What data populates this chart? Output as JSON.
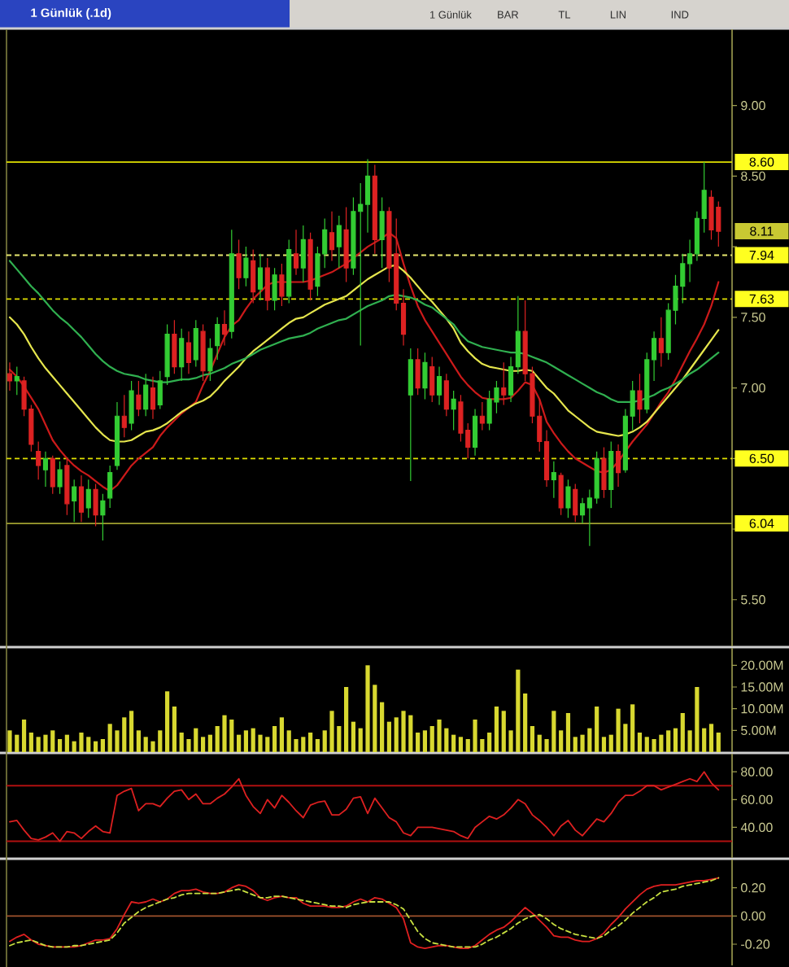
{
  "chart_data": [
    {
      "type": "candlestick",
      "title": "1 Günlük (.1d)",
      "categories": [
        null,
        null,
        null,
        null,
        null,
        null,
        null,
        null,
        null,
        null,
        null,
        null,
        null,
        null,
        null,
        null,
        null,
        null,
        null,
        null,
        null,
        null,
        null,
        null,
        null,
        null,
        null,
        null,
        null,
        null,
        null,
        null,
        null,
        null,
        null,
        null,
        null,
        null,
        null,
        null,
        null,
        null,
        null,
        null,
        null,
        null,
        null,
        null,
        null,
        null,
        null,
        null,
        null,
        null,
        null,
        null,
        null,
        null,
        null,
        null,
        null,
        null,
        null,
        null,
        null,
        null,
        null,
        null,
        null,
        null,
        null,
        null,
        null,
        null,
        null,
        null,
        null,
        null,
        null,
        null,
        null,
        null,
        null,
        null,
        null,
        null,
        null,
        null,
        null,
        null,
        null,
        null,
        null,
        null,
        null,
        null,
        null,
        null,
        null,
        null
      ],
      "ohlc": [
        [
          7.1,
          7.18,
          6.98,
          7.05
        ],
        [
          7.05,
          7.15,
          6.95,
          7.08
        ],
        [
          7.05,
          7.08,
          6.8,
          6.85
        ],
        [
          6.85,
          6.88,
          6.55,
          6.6
        ],
        [
          6.55,
          6.62,
          6.35,
          6.45
        ],
        [
          6.42,
          6.55,
          6.3,
          6.5
        ],
        [
          6.5,
          6.52,
          6.25,
          6.3
        ],
        [
          6.3,
          6.48,
          6.25,
          6.42
        ],
        [
          6.45,
          6.5,
          6.1,
          6.18
        ],
        [
          6.2,
          6.35,
          6.05,
          6.3
        ],
        [
          6.3,
          6.38,
          6.05,
          6.12
        ],
        [
          6.15,
          6.35,
          6.08,
          6.28
        ],
        [
          6.28,
          6.32,
          6.02,
          6.1
        ],
        [
          6.1,
          6.25,
          5.92,
          6.2
        ],
        [
          6.22,
          6.45,
          6.15,
          6.4
        ],
        [
          6.45,
          6.9,
          6.42,
          6.8
        ],
        [
          6.8,
          6.95,
          6.65,
          6.72
        ],
        [
          6.75,
          7.05,
          6.7,
          6.98
        ],
        [
          6.95,
          7.05,
          6.8,
          6.85
        ],
        [
          6.85,
          7.1,
          6.8,
          7.02
        ],
        [
          7.0,
          7.08,
          6.78,
          6.85
        ],
        [
          6.88,
          7.12,
          6.85,
          7.05
        ],
        [
          7.08,
          7.45,
          7.02,
          7.38
        ],
        [
          7.38,
          7.48,
          7.1,
          7.15
        ],
        [
          7.15,
          7.42,
          7.05,
          7.35
        ],
        [
          7.32,
          7.4,
          7.1,
          7.18
        ],
        [
          7.2,
          7.48,
          7.15,
          7.42
        ],
        [
          7.4,
          7.45,
          7.05,
          7.12
        ],
        [
          7.12,
          7.35,
          7.05,
          7.28
        ],
        [
          7.3,
          7.5,
          7.2,
          7.45
        ],
        [
          7.45,
          7.55,
          7.3,
          7.38
        ],
        [
          7.4,
          8.12,
          7.35,
          7.95
        ],
        [
          7.95,
          8.05,
          7.7,
          7.78
        ],
        [
          7.78,
          8.0,
          7.72,
          7.92
        ],
        [
          7.9,
          7.98,
          7.6,
          7.68
        ],
        [
          7.7,
          7.95,
          7.62,
          7.85
        ],
        [
          7.85,
          7.92,
          7.55,
          7.62
        ],
        [
          7.62,
          7.85,
          7.55,
          7.8
        ],
        [
          7.8,
          7.88,
          7.58,
          7.65
        ],
        [
          7.65,
          8.05,
          7.6,
          7.98
        ],
        [
          7.95,
          8.12,
          7.8,
          7.85
        ],
        [
          7.85,
          8.15,
          7.75,
          8.05
        ],
        [
          8.05,
          8.1,
          7.62,
          7.7
        ],
        [
          7.72,
          8.0,
          7.65,
          7.95
        ],
        [
          7.95,
          8.2,
          7.85,
          8.12
        ],
        [
          8.1,
          8.25,
          7.9,
          7.98
        ],
        [
          8.0,
          8.22,
          7.85,
          8.15
        ],
        [
          8.12,
          8.28,
          7.75,
          7.85
        ],
        [
          7.85,
          8.35,
          7.8,
          8.25
        ],
        [
          8.25,
          8.45,
          7.3,
          8.3
        ],
        [
          8.3,
          8.62,
          8.1,
          8.5
        ],
        [
          8.5,
          8.58,
          7.95,
          8.05
        ],
        [
          8.05,
          8.35,
          7.85,
          8.25
        ],
        [
          8.25,
          8.28,
          7.75,
          7.85
        ],
        [
          7.95,
          8.2,
          7.55,
          7.6
        ],
        [
          7.6,
          7.7,
          7.3,
          7.38
        ],
        [
          6.95,
          7.28,
          6.34,
          7.2
        ],
        [
          7.2,
          7.28,
          6.95,
          7.0
        ],
        [
          7.0,
          7.25,
          6.92,
          7.18
        ],
        [
          7.15,
          7.22,
          6.9,
          6.95
        ],
        [
          6.95,
          7.15,
          6.88,
          7.08
        ],
        [
          7.05,
          7.1,
          6.8,
          6.85
        ],
        [
          6.85,
          6.98,
          6.7,
          6.92
        ],
        [
          6.9,
          6.95,
          6.62,
          6.68
        ],
        [
          6.7,
          6.75,
          6.5,
          6.58
        ],
        [
          6.58,
          6.85,
          6.52,
          6.8
        ],
        [
          6.8,
          6.9,
          6.7,
          6.75
        ],
        [
          6.75,
          6.98,
          6.7,
          6.92
        ],
        [
          6.9,
          7.05,
          6.82,
          7.0
        ],
        [
          7.0,
          7.18,
          6.88,
          6.95
        ],
        [
          6.95,
          7.22,
          6.9,
          7.15
        ],
        [
          7.15,
          7.65,
          7.1,
          7.4
        ],
        [
          7.4,
          7.62,
          7.05,
          7.1
        ],
        [
          7.1,
          7.15,
          6.75,
          6.8
        ],
        [
          6.8,
          6.92,
          6.55,
          6.62
        ],
        [
          6.62,
          6.7,
          6.3,
          6.35
        ],
        [
          6.35,
          6.48,
          6.22,
          6.4
        ],
        [
          6.38,
          6.4,
          6.1,
          6.15
        ],
        [
          6.15,
          6.35,
          6.08,
          6.3
        ],
        [
          6.28,
          6.32,
          6.05,
          6.1
        ],
        [
          6.1,
          6.22,
          6.04,
          6.18
        ],
        [
          6.15,
          6.28,
          5.88,
          6.22
        ],
        [
          6.22,
          6.55,
          6.18,
          6.5
        ],
        [
          6.5,
          6.58,
          6.22,
          6.28
        ],
        [
          6.28,
          6.62,
          6.15,
          6.55
        ],
        [
          6.55,
          6.6,
          6.3,
          6.4
        ],
        [
          6.42,
          6.85,
          6.4,
          6.8
        ],
        [
          6.8,
          7.05,
          6.7,
          6.98
        ],
        [
          6.98,
          7.1,
          6.75,
          6.85
        ],
        [
          6.85,
          7.25,
          6.82,
          7.2
        ],
        [
          7.2,
          7.4,
          7.05,
          7.35
        ],
        [
          7.35,
          7.5,
          7.15,
          7.25
        ],
        [
          7.25,
          7.6,
          7.2,
          7.55
        ],
        [
          7.55,
          7.8,
          7.45,
          7.72
        ],
        [
          7.72,
          7.95,
          7.6,
          7.88
        ],
        [
          7.88,
          8.05,
          7.75,
          7.95
        ],
        [
          7.95,
          8.25,
          7.9,
          8.2
        ],
        [
          8.2,
          8.6,
          8.1,
          8.4
        ],
        [
          8.35,
          8.4,
          8.05,
          8.12
        ],
        [
          8.28,
          8.32,
          8.0,
          8.11
        ]
      ],
      "colors": [
        "#dd2222",
        "#33cc33",
        "#dd2222",
        "#dd2222",
        "#dd2222",
        "#33cc33",
        "#dd2222",
        "#33cc33",
        "#dd2222",
        "#33cc33",
        "#dd2222",
        "#33cc33",
        "#dd2222",
        "#33cc33",
        "#33cc33",
        "#33cc33",
        "#dd2222",
        "#33cc33",
        "#dd2222",
        "#33cc33",
        "#dd2222",
        "#33cc33",
        "#33cc33",
        "#dd2222",
        "#33cc33",
        "#dd2222",
        "#33cc33",
        "#dd2222",
        "#33cc33",
        "#33cc33",
        "#dd2222",
        "#33cc33",
        "#dd2222",
        "#33cc33",
        "#dd2222",
        "#33cc33",
        "#dd2222",
        "#33cc33",
        "#dd2222",
        "#33cc33",
        "#dd2222",
        "#33cc33",
        "#dd2222",
        "#33cc33",
        "#33cc33",
        "#dd2222",
        "#33cc33",
        "#dd2222",
        "#33cc33",
        "#33cc33",
        "#33cc33",
        "#dd2222",
        "#33cc33",
        "#dd2222",
        "#dd2222",
        "#dd2222",
        "#33cc33",
        "#dd2222",
        "#33cc33",
        "#dd2222",
        "#33cc33",
        "#dd2222",
        "#33cc33",
        "#dd2222",
        "#dd2222",
        "#33cc33",
        "#dd2222",
        "#33cc33",
        "#33cc33",
        "#dd2222",
        "#33cc33",
        "#33cc33",
        "#dd2222",
        "#dd2222",
        "#dd2222",
        "#dd2222",
        "#33cc33",
        "#dd2222",
        "#33cc33",
        "#dd2222",
        "#33cc33",
        "#33cc33",
        "#33cc33",
        "#dd2222",
        "#33cc33",
        "#dd2222",
        "#33cc33",
        "#33cc33",
        "#dd2222",
        "#33cc33",
        "#33cc33",
        "#dd2222",
        "#33cc33",
        "#33cc33",
        "#33cc33",
        "#33cc33",
        "#33cc33",
        "#33cc33",
        "#dd2222",
        "#dd2222"
      ],
      "series": [
        {
          "type": "line",
          "color": "#cc1a1a",
          "values": [
            7.13,
            7.08,
            7.01,
            6.93,
            6.85,
            6.74,
            6.63,
            6.56,
            6.5,
            6.45,
            6.41,
            6.38,
            6.34,
            6.3,
            6.27,
            6.31,
            6.38,
            6.45,
            6.5,
            6.54,
            6.58,
            6.66,
            6.72,
            6.77,
            6.82,
            6.86,
            6.9,
            7.02,
            7.12,
            7.24,
            7.36,
            7.44,
            7.48,
            7.56,
            7.63,
            7.68,
            7.73,
            7.75,
            7.75,
            7.75,
            7.75,
            7.75,
            7.76,
            7.78,
            7.8,
            7.82,
            7.85,
            7.88,
            7.92,
            7.96,
            8.0,
            8.03,
            8.06,
            8.1,
            8.06,
            7.88,
            7.72,
            7.58,
            7.48,
            7.4,
            7.32,
            7.24,
            7.16,
            7.08,
            7.02,
            6.97,
            6.93,
            6.92,
            6.92,
            6.92,
            6.93,
            6.98,
            7.04,
            7.02,
            6.92,
            6.76,
            6.68,
            6.61,
            6.55,
            6.5,
            6.47,
            6.44,
            6.41,
            6.4,
            6.42,
            6.48,
            6.55,
            6.62,
            6.68,
            6.74,
            6.82,
            6.9,
            6.97,
            7.06,
            7.16,
            7.26,
            7.35,
            7.45,
            7.58,
            7.75
          ]
        },
        {
          "type": "line",
          "color": "#e6e64d",
          "values": [
            7.5,
            7.45,
            7.38,
            7.29,
            7.21,
            7.14,
            7.08,
            7.02,
            6.96,
            6.9,
            6.84,
            6.78,
            6.72,
            6.67,
            6.63,
            6.62,
            6.62,
            6.63,
            6.66,
            6.69,
            6.7,
            6.72,
            6.75,
            6.79,
            6.83,
            6.86,
            6.89,
            6.91,
            6.94,
            6.99,
            7.05,
            7.1,
            7.15,
            7.21,
            7.26,
            7.3,
            7.34,
            7.38,
            7.42,
            7.46,
            7.49,
            7.5,
            7.53,
            7.56,
            7.59,
            7.61,
            7.63,
            7.65,
            7.69,
            7.73,
            7.77,
            7.8,
            7.83,
            7.86,
            7.87,
            7.83,
            7.78,
            7.72,
            7.66,
            7.61,
            7.55,
            7.49,
            7.42,
            7.32,
            7.26,
            7.21,
            7.17,
            7.15,
            7.14,
            7.13,
            7.12,
            7.12,
            7.13,
            7.12,
            7.06,
            7.0,
            6.96,
            6.9,
            6.84,
            6.8,
            6.76,
            6.72,
            6.69,
            6.68,
            6.67,
            6.66,
            6.67,
            6.69,
            6.72,
            6.76,
            6.82,
            6.88,
            6.94,
            7.0,
            7.06,
            7.13,
            7.2,
            7.27,
            7.34,
            7.41
          ]
        },
        {
          "type": "line",
          "color": "#30b050",
          "values": [
            7.9,
            7.84,
            7.78,
            7.72,
            7.67,
            7.61,
            7.55,
            7.5,
            7.46,
            7.41,
            7.36,
            7.3,
            7.24,
            7.19,
            7.15,
            7.12,
            7.1,
            7.09,
            7.08,
            7.06,
            7.05,
            7.04,
            7.04,
            7.05,
            7.06,
            7.06,
            7.07,
            7.09,
            7.1,
            7.12,
            7.14,
            7.17,
            7.19,
            7.21,
            7.24,
            7.27,
            7.29,
            7.31,
            7.33,
            7.35,
            7.36,
            7.37,
            7.39,
            7.42,
            7.44,
            7.46,
            7.48,
            7.49,
            7.52,
            7.55,
            7.58,
            7.6,
            7.62,
            7.65,
            7.66,
            7.65,
            7.64,
            7.62,
            7.59,
            7.57,
            7.53,
            7.49,
            7.45,
            7.38,
            7.33,
            7.31,
            7.29,
            7.28,
            7.27,
            7.26,
            7.25,
            7.25,
            7.24,
            7.22,
            7.2,
            7.18,
            7.15,
            7.12,
            7.09,
            7.06,
            7.03,
            7.0,
            6.97,
            6.95,
            6.92,
            6.9,
            6.9,
            6.9,
            6.91,
            6.93,
            6.95,
            6.98,
            7.0,
            7.03,
            7.06,
            7.1,
            7.13,
            7.17,
            7.21,
            7.25
          ]
        }
      ],
      "ylim": [
        5.17,
        9.54
      ],
      "yticks": [
        {
          "value": 5.5,
          "label": "5.50"
        },
        {
          "value": 6,
          "label": null
        },
        {
          "value": 6.5,
          "label": null
        },
        {
          "value": 7,
          "label": "7.00"
        },
        {
          "value": 7.5,
          "label": "7.50"
        },
        {
          "value": 8,
          "label": null
        },
        {
          "value": 8.5,
          "label": "8.50"
        },
        {
          "value": 9,
          "label": "9.00"
        }
      ],
      "ref_lines": [
        {
          "axis": "y",
          "value": 8.6,
          "label": "8.60",
          "color": "#e0e000",
          "line_style": "solid"
        },
        {
          "axis": "y",
          "value": 7.94,
          "label": "7.94",
          "color": "#e8e870",
          "line_style": "dashed"
        },
        {
          "axis": "y",
          "value": 7.63,
          "label": "7.63",
          "color": "#e0e000",
          "line_style": "dashed"
        },
        {
          "axis": "y",
          "value": 6.5,
          "label": "6.50",
          "color": "#e0e000",
          "line_style": "dashed"
        },
        {
          "axis": "y",
          "value": 6.04,
          "label": "6.04",
          "color": "#a0a030",
          "line_style": "solid"
        }
      ],
      "annotations": [
        "1 Günlük",
        "BAR",
        "TL",
        "LIN",
        "IND",
        {
          "text": "8.11",
          "y": 8.11
        }
      ],
      "tick_labels": "y"
    },
    {
      "type": "bar",
      "categories": [
        null,
        null,
        null,
        null,
        null,
        null,
        null,
        null,
        null,
        null,
        null,
        null,
        null,
        null,
        null,
        null,
        null,
        null,
        null,
        null,
        null,
        null,
        null,
        null,
        null,
        null,
        null,
        null,
        null,
        null,
        null,
        null,
        null,
        null,
        null,
        null,
        null,
        null,
        null,
        null,
        null,
        null,
        null,
        null,
        null,
        null,
        null,
        null,
        null,
        null,
        null,
        null,
        null,
        null,
        null,
        null,
        null,
        null,
        null,
        null,
        null,
        null,
        null,
        null,
        null,
        null,
        null,
        null,
        null,
        null,
        null,
        null,
        null,
        null,
        null,
        null,
        null,
        null,
        null,
        null,
        null,
        null,
        null,
        null,
        null,
        null,
        null,
        null,
        null,
        null,
        null,
        null,
        null,
        null,
        null,
        null,
        null,
        null,
        null,
        null
      ],
      "values": [
        5,
        4,
        7.5,
        4.5,
        3.5,
        4,
        5,
        3,
        4,
        2.5,
        4.5,
        3.5,
        2.5,
        3,
        6.5,
        5,
        8,
        9.5,
        5,
        3.5,
        2.5,
        5,
        14,
        10.5,
        4.5,
        3,
        5.5,
        3.5,
        4,
        6,
        8.5,
        7.5,
        4,
        5,
        5.5,
        4,
        3.5,
        6,
        8,
        5,
        3,
        3.5,
        4.5,
        3,
        5,
        9.5,
        6,
        15,
        7,
        5.5,
        20,
        15.5,
        11.5,
        7,
        8,
        9.5,
        8.5,
        4.5,
        5,
        6,
        7.5,
        5.5,
        4,
        3.5,
        3,
        7.5,
        3,
        4.5,
        10.5,
        9.5,
        5,
        19,
        13.5,
        6,
        4,
        3,
        9.5,
        5,
        9,
        3.5,
        4,
        5.5,
        10.5,
        3.5,
        4,
        10,
        6.5,
        11,
        4.5,
        3.5,
        3,
        4,
        5,
        5.5,
        9,
        5,
        15,
        5.5,
        6.5,
        4.5
      ],
      "color": "#d8d830",
      "ylim": [
        0,
        24
      ],
      "yticks": [
        {
          "value": 5,
          "label": "5.00M"
        },
        {
          "value": 10,
          "label": "10.00M"
        },
        {
          "value": 15,
          "label": "15.00M"
        },
        {
          "value": 20,
          "label": "20.00M"
        }
      ],
      "tick_labels": "y"
    },
    {
      "type": "line",
      "categories": [
        null,
        null,
        null,
        null,
        null,
        null,
        null,
        null,
        null,
        null,
        null,
        null,
        null,
        null,
        null,
        null,
        null,
        null,
        null,
        null,
        null,
        null,
        null,
        null,
        null,
        null,
        null,
        null,
        null,
        null,
        null,
        null,
        null,
        null,
        null,
        null,
        null,
        null,
        null,
        null,
        null,
        null,
        null,
        null,
        null,
        null,
        null,
        null,
        null,
        null,
        null,
        null,
        null,
        null,
        null,
        null,
        null,
        null,
        null,
        null,
        null,
        null,
        null,
        null,
        null,
        null,
        null,
        null,
        null,
        null,
        null,
        null,
        null,
        null,
        null,
        null,
        null,
        null,
        null,
        null,
        null,
        null,
        null,
        null,
        null,
        null,
        null,
        null,
        null,
        null,
        null,
        null,
        null,
        null,
        null,
        null,
        null,
        null,
        null,
        null
      ],
      "values": [
        44,
        45,
        38,
        32,
        31,
        33,
        36,
        30,
        37,
        36,
        32,
        37,
        41,
        37,
        36,
        63,
        66,
        68,
        52,
        57,
        57,
        55,
        61,
        66,
        67,
        60,
        64,
        57,
        57,
        61,
        64,
        69,
        75,
        63,
        55,
        50,
        60,
        54,
        63,
        58,
        52,
        47,
        56,
        58,
        59,
        49,
        49,
        53,
        61,
        62,
        50,
        61,
        54,
        47,
        44,
        36,
        34,
        40,
        40,
        40,
        39,
        38,
        37,
        34,
        32,
        40,
        44,
        48,
        46,
        49,
        54,
        60,
        57,
        49,
        45,
        40,
        34,
        41,
        45,
        38,
        34,
        40,
        46,
        44,
        50,
        58,
        63,
        63,
        66,
        70,
        70,
        67,
        69,
        71,
        73,
        75,
        73,
        80,
        72,
        67
      ],
      "color": "#dd2020",
      "ylim": [
        18,
        93
      ],
      "yticks": [
        {
          "value": 40,
          "label": "40.00"
        },
        {
          "value": 60,
          "label": "60.00"
        },
        {
          "value": 80,
          "label": "80.00"
        }
      ],
      "ref_lines": [
        {
          "axis": "y",
          "value": 70,
          "color": "#b01010"
        },
        {
          "axis": "y",
          "value": 30,
          "color": "#b01010"
        }
      ],
      "tick_labels": "y"
    },
    {
      "type": "line",
      "categories": [
        null,
        null,
        null,
        null,
        null,
        null,
        null,
        null,
        null,
        null,
        null,
        null,
        null,
        null,
        null,
        null,
        null,
        null,
        null,
        null,
        null,
        null,
        null,
        null,
        null,
        null,
        null,
        null,
        null,
        null,
        null,
        null,
        null,
        null,
        null,
        null,
        null,
        null,
        null,
        null,
        null,
        null,
        null,
        null,
        null,
        null,
        null,
        null,
        null,
        null,
        null,
        null,
        null,
        null,
        null,
        null,
        null,
        null,
        null,
        null,
        null,
        null,
        null,
        null,
        null,
        null,
        null,
        null,
        null,
        null,
        null,
        null,
        null,
        null,
        null,
        null,
        null,
        null,
        null,
        null,
        null,
        null,
        null,
        null,
        null,
        null,
        null,
        null,
        null,
        null,
        null,
        null,
        null,
        null,
        null,
        null,
        null,
        null,
        null,
        null
      ],
      "series": [
        {
          "color": "#e02020",
          "values": [
            -0.18,
            -0.15,
            -0.13,
            -0.17,
            -0.2,
            -0.21,
            -0.22,
            -0.22,
            -0.22,
            -0.22,
            -0.21,
            -0.19,
            -0.17,
            -0.17,
            -0.16,
            -0.09,
            0.01,
            0.1,
            0.09,
            0.1,
            0.12,
            0.1,
            0.12,
            0.16,
            0.18,
            0.18,
            0.19,
            0.17,
            0.16,
            0.16,
            0.17,
            0.2,
            0.22,
            0.21,
            0.18,
            0.13,
            0.11,
            0.13,
            0.14,
            0.13,
            0.13,
            0.09,
            0.07,
            0.07,
            0.07,
            0.06,
            0.06,
            0.07,
            0.1,
            0.12,
            0.1,
            0.13,
            0.12,
            0.09,
            0.06,
            -0.02,
            -0.19,
            -0.22,
            -0.23,
            -0.22,
            -0.21,
            -0.21,
            -0.22,
            -0.23,
            -0.23,
            -0.21,
            -0.17,
            -0.13,
            -0.1,
            -0.08,
            -0.04,
            0.01,
            0.06,
            0.02,
            -0.03,
            -0.08,
            -0.14,
            -0.15,
            -0.15,
            -0.17,
            -0.18,
            -0.18,
            -0.16,
            -0.12,
            -0.06,
            -0.01,
            0.05,
            0.1,
            0.15,
            0.19,
            0.21,
            0.22,
            0.22,
            0.22,
            0.23,
            0.24,
            0.25,
            0.25,
            0.26,
            0.27
          ]
        },
        {
          "color": "#c8e040",
          "line_style": "dashed",
          "values": [
            -0.21,
            -0.19,
            -0.18,
            -0.17,
            -0.19,
            -0.21,
            -0.22,
            -0.22,
            -0.22,
            -0.21,
            -0.21,
            -0.2,
            -0.19,
            -0.18,
            -0.17,
            -0.12,
            -0.05,
            -0.01,
            0.03,
            0.06,
            0.08,
            0.1,
            0.12,
            0.13,
            0.15,
            0.16,
            0.16,
            0.16,
            0.16,
            0.16,
            0.17,
            0.18,
            0.19,
            0.17,
            0.15,
            0.13,
            0.13,
            0.14,
            0.14,
            0.13,
            0.12,
            0.11,
            0.1,
            0.09,
            0.08,
            0.07,
            0.07,
            0.06,
            0.08,
            0.09,
            0.1,
            0.1,
            0.1,
            0.1,
            0.08,
            0.05,
            -0.03,
            -0.11,
            -0.16,
            -0.19,
            -0.2,
            -0.21,
            -0.22,
            -0.22,
            -0.22,
            -0.22,
            -0.2,
            -0.17,
            -0.15,
            -0.12,
            -0.09,
            -0.05,
            -0.02,
            0.0,
            0.01,
            -0.02,
            -0.06,
            -0.09,
            -0.11,
            -0.13,
            -0.14,
            -0.15,
            -0.16,
            -0.14,
            -0.1,
            -0.07,
            -0.03,
            0.02,
            0.06,
            0.1,
            0.13,
            0.17,
            0.18,
            0.19,
            0.21,
            0.22,
            0.23,
            0.24,
            0.25,
            0.27
          ]
        }
      ],
      "ylim": [
        -0.35,
        0.4
      ],
      "yticks": [
        {
          "value": -0.2,
          "label": "-0.20"
        },
        {
          "value": 0,
          "label": "0.00"
        },
        {
          "value": 0.2,
          "label": "0.20"
        }
      ],
      "ref_lines": [
        {
          "axis": "y",
          "value": 0,
          "color": "#a0522d"
        }
      ],
      "tick_labels": "y"
    }
  ]
}
